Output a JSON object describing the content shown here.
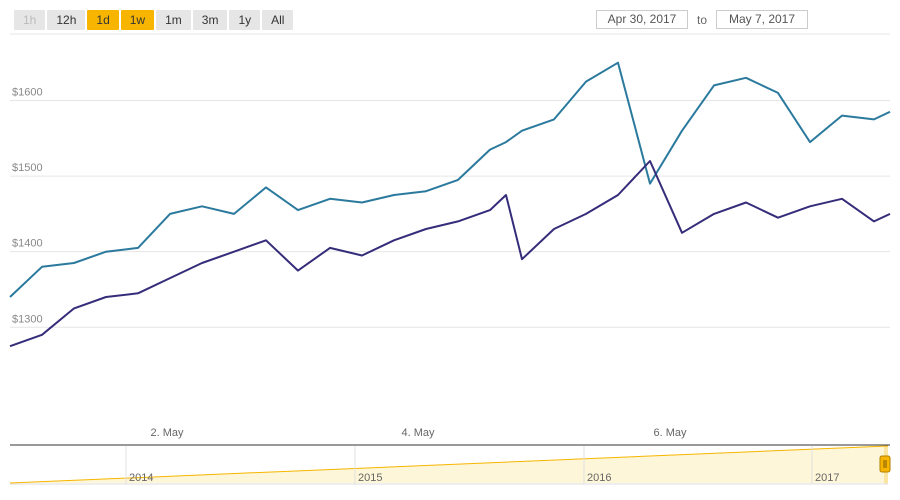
{
  "range_selector": {
    "buttons": [
      {
        "label": "1h",
        "state": "disabled"
      },
      {
        "label": "12h",
        "state": "normal"
      },
      {
        "label": "1d",
        "state": "active"
      },
      {
        "label": "1w",
        "state": "active"
      },
      {
        "label": "1m",
        "state": "normal"
      },
      {
        "label": "3m",
        "state": "normal"
      },
      {
        "label": "1y",
        "state": "normal"
      },
      {
        "label": "All",
        "state": "normal"
      }
    ]
  },
  "date_range": {
    "from": "Apr 30, 2017",
    "to_label": "to",
    "to": "May 7, 2017"
  },
  "colors": {
    "series_1": "#2b7a9e",
    "series_2": "#352c7a",
    "active_button": "#f7b500",
    "navigator": "#f7b500"
  },
  "chart_data": {
    "type": "line",
    "y_unit": "$",
    "yticks": [
      "$1300",
      "$1400",
      "$1500",
      "$1600"
    ],
    "ylim": [
      1180,
      1680
    ],
    "xlim": [
      "2017-05-01 00:00",
      "2017-05-07 21:00"
    ],
    "xticks": [
      "2. May",
      "4. May",
      "6. May"
    ],
    "grid": true,
    "legend": "none",
    "series": [
      {
        "x": [
          "2017-05-01 00:00",
          "2017-05-01 06:00",
          "2017-05-01 12:00",
          "2017-05-01 18:00",
          "2017-05-02 00:00",
          "2017-05-02 06:00",
          "2017-05-02 12:00",
          "2017-05-02 18:00",
          "2017-05-03 00:00",
          "2017-05-03 06:00",
          "2017-05-03 12:00",
          "2017-05-03 18:00",
          "2017-05-04 00:00",
          "2017-05-04 06:00",
          "2017-05-04 12:00",
          "2017-05-04 18:00",
          "2017-05-04 21:00",
          "2017-05-05 00:00",
          "2017-05-05 06:00",
          "2017-05-05 12:00",
          "2017-05-05 18:00",
          "2017-05-06 00:00",
          "2017-05-06 06:00",
          "2017-05-06 12:00",
          "2017-05-06 18:00",
          "2017-05-07 00:00",
          "2017-05-07 06:00",
          "2017-05-07 12:00",
          "2017-05-07 18:00",
          "2017-05-07 21:00"
        ],
        "values": [
          1340,
          1380,
          1385,
          1400,
          1405,
          1450,
          1460,
          1450,
          1485,
          1455,
          1470,
          1465,
          1475,
          1480,
          1495,
          1535,
          1545,
          1560,
          1575,
          1625,
          1650,
          1490,
          1560,
          1620,
          1630,
          1610,
          1545,
          1580,
          1575,
          1585
        ]
      },
      {
        "x": [
          "2017-05-01 00:00",
          "2017-05-01 06:00",
          "2017-05-01 12:00",
          "2017-05-01 18:00",
          "2017-05-02 00:00",
          "2017-05-02 06:00",
          "2017-05-02 12:00",
          "2017-05-02 18:00",
          "2017-05-03 00:00",
          "2017-05-03 06:00",
          "2017-05-03 12:00",
          "2017-05-03 18:00",
          "2017-05-04 00:00",
          "2017-05-04 06:00",
          "2017-05-04 12:00",
          "2017-05-04 18:00",
          "2017-05-04 21:00",
          "2017-05-05 00:00",
          "2017-05-05 06:00",
          "2017-05-05 12:00",
          "2017-05-05 18:00",
          "2017-05-06 00:00",
          "2017-05-06 06:00",
          "2017-05-06 12:00",
          "2017-05-06 18:00",
          "2017-05-07 00:00",
          "2017-05-07 06:00",
          "2017-05-07 12:00",
          "2017-05-07 18:00",
          "2017-05-07 21:00"
        ],
        "values": [
          1275,
          1290,
          1325,
          1340,
          1345,
          1365,
          1385,
          1400,
          1415,
          1375,
          1405,
          1395,
          1415,
          1430,
          1440,
          1455,
          1475,
          1390,
          1430,
          1450,
          1475,
          1520,
          1425,
          1450,
          1465,
          1445,
          1460,
          1470,
          1440,
          1450
        ]
      }
    ],
    "navigator": {
      "ticks": [
        "2014",
        "2015",
        "2016",
        "2017"
      ]
    }
  }
}
